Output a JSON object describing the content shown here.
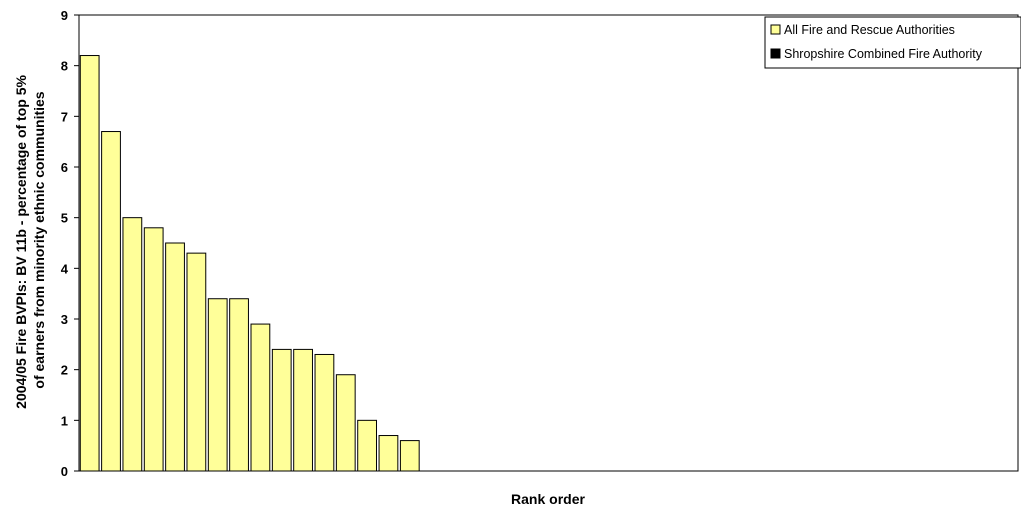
{
  "chart_data": {
    "type": "bar",
    "xlabel": "Rank order",
    "ylabel_lines": [
      "2004/05 Fire BVPIs: BV 11b - percentage of top 5%",
      "of earners from minority ethnic communities"
    ],
    "ylim": [
      0,
      9
    ],
    "yticks": [
      0,
      1,
      2,
      3,
      4,
      5,
      6,
      7,
      8,
      9
    ],
    "grid": false,
    "legend_position": "top-right",
    "series": [
      {
        "name": "All Fire and Rescue Authorities",
        "color": "#FFFF99",
        "values": [
          8.2,
          6.7,
          5.0,
          4.8,
          4.5,
          4.3,
          3.4,
          3.4,
          2.9,
          2.4,
          2.4,
          2.3,
          1.9,
          1.0,
          0.7,
          0.6
        ]
      },
      {
        "name": "Shropshire Combined Fire Authority",
        "color": "#000000",
        "values": []
      }
    ],
    "category_slots": 44
  }
}
